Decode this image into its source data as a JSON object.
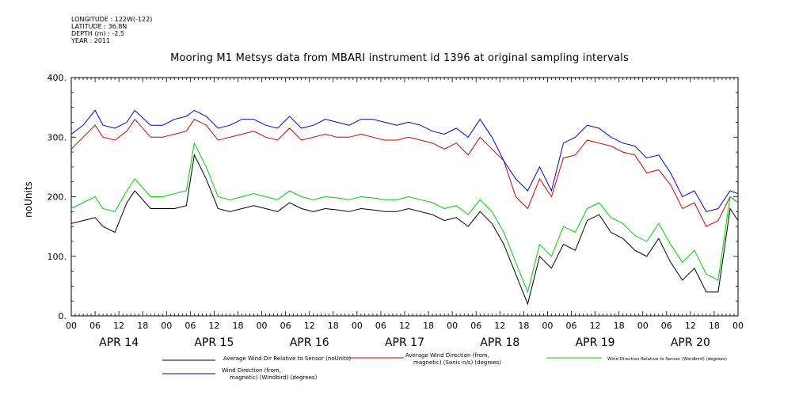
{
  "meta": {
    "longitude": "LONGITUDE : 122W(-122)",
    "latitude": "LATITUDE : 36.8N",
    "depth": "DEPTH (m) : -2.5",
    "year": "YEAR : 2011"
  },
  "colors": {
    "black": "#000000",
    "red": "#cc0000",
    "green": "#00cc00",
    "blue": "#0000cc"
  },
  "chart_data": {
    "type": "line",
    "title": "Mooring M1 Metsys data from MBARI instrument id 1396 at original sampling intervals",
    "ylabel": "noUnits",
    "xlabel": "",
    "ylim": [
      0,
      400
    ],
    "xlim_hours": [
      0,
      168
    ],
    "yticks": [
      "0.",
      "100.",
      "200.",
      "300.",
      "400."
    ],
    "hour_tick_labels": [
      "00",
      "06",
      "12",
      "18",
      "00",
      "06",
      "12",
      "18",
      "00",
      "06",
      "12",
      "18",
      "00",
      "06",
      "12",
      "18",
      "00",
      "06",
      "12",
      "18",
      "00",
      "06",
      "12",
      "18",
      "00",
      "06",
      "12",
      "18",
      "00"
    ],
    "day_labels": [
      "APR 14",
      "APR 15",
      "APR 16",
      "APR 17",
      "APR 18",
      "APR 19",
      "APR 20"
    ],
    "x_hours": [
      0,
      3,
      6,
      8,
      11,
      14,
      16,
      20,
      23,
      26,
      29,
      31,
      34,
      37,
      40,
      43,
      46,
      49,
      52,
      55,
      58,
      61,
      64,
      67,
      70,
      73,
      76,
      79,
      82,
      85,
      88,
      91,
      94,
      97,
      100,
      103,
      106,
      109,
      112,
      115,
      118,
      121,
      124,
      127,
      130,
      133,
      136,
      139,
      142,
      145,
      148,
      151,
      154,
      157,
      160,
      163,
      166,
      168
    ],
    "series": [
      {
        "name": "Average Wind Dir Relative to Sensor (noUnits)",
        "color": "#000000",
        "values": [
          155,
          160,
          165,
          150,
          140,
          190,
          210,
          180,
          180,
          180,
          185,
          270,
          230,
          180,
          175,
          180,
          185,
          180,
          175,
          190,
          180,
          175,
          180,
          178,
          175,
          180,
          178,
          175,
          175,
          180,
          175,
          170,
          160,
          165,
          150,
          175,
          155,
          120,
          70,
          20,
          100,
          80,
          120,
          110,
          160,
          170,
          140,
          130,
          110,
          100,
          130,
          90,
          60,
          80,
          40,
          40,
          180,
          160
        ]
      },
      {
        "name": "Average Wind Direction (from, magnetic) (Sonic-n/s) (degrees)",
        "color": "#cc0000",
        "values": [
          280,
          300,
          320,
          300,
          295,
          310,
          330,
          300,
          300,
          305,
          310,
          330,
          320,
          295,
          300,
          305,
          310,
          300,
          295,
          315,
          295,
          300,
          305,
          300,
          300,
          305,
          300,
          295,
          295,
          300,
          295,
          290,
          280,
          290,
          270,
          300,
          280,
          260,
          200,
          180,
          230,
          200,
          265,
          270,
          295,
          290,
          285,
          275,
          270,
          240,
          245,
          220,
          180,
          190,
          150,
          160,
          200,
          190
        ]
      },
      {
        "name": "Wind Direction Relative to Sensor (Windbird) (degrees)",
        "color": "#00cc00",
        "values": [
          180,
          190,
          200,
          180,
          175,
          210,
          230,
          200,
          200,
          205,
          210,
          290,
          250,
          200,
          195,
          200,
          205,
          200,
          195,
          210,
          200,
          195,
          200,
          198,
          195,
          200,
          198,
          195,
          195,
          200,
          195,
          190,
          180,
          185,
          170,
          195,
          175,
          140,
          90,
          40,
          120,
          100,
          150,
          140,
          180,
          190,
          165,
          155,
          135,
          125,
          155,
          120,
          90,
          110,
          70,
          60,
          200,
          190
        ]
      },
      {
        "name": "Wind Direction (from, magnetic) (Windbird) (degrees)",
        "color": "#0000cc",
        "values": [
          305,
          320,
          345,
          320,
          315,
          325,
          345,
          320,
          320,
          330,
          335,
          345,
          335,
          315,
          320,
          330,
          330,
          320,
          315,
          335,
          315,
          320,
          330,
          325,
          320,
          330,
          330,
          325,
          320,
          325,
          320,
          310,
          305,
          315,
          300,
          330,
          300,
          260,
          230,
          210,
          250,
          210,
          290,
          300,
          320,
          315,
          300,
          290,
          285,
          265,
          270,
          240,
          200,
          210,
          175,
          180,
          210,
          205
        ]
      }
    ],
    "legend_placement": "bottom",
    "grid": false
  }
}
